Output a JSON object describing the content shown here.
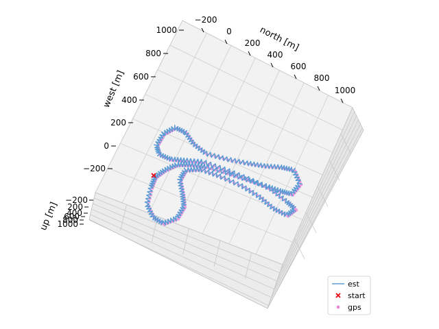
{
  "chart_data": {
    "type": "line",
    "projection": "3d",
    "axes": {
      "north": {
        "label": "north [m]",
        "ticks": [
          "−200",
          "0",
          "200",
          "400",
          "600",
          "800",
          "1000"
        ]
      },
      "west": {
        "label": "west [m]",
        "ticks": [
          "1000",
          "800",
          "600",
          "400",
          "200",
          "0",
          "−200"
        ]
      },
      "up": {
        "label": "up [m]",
        "ticks": [
          "−200",
          "200",
          "400",
          "600",
          "800",
          "1000"
        ]
      }
    },
    "grid": true,
    "legend": {
      "placement": "lower-right",
      "entries": [
        {
          "label": "est",
          "marker": "line",
          "color": "#5b9bd5"
        },
        {
          "label": "start",
          "marker": "x",
          "color": "#e8000b"
        },
        {
          "label": "gps",
          "marker": "dot",
          "color": "#e88cd6"
        }
      ]
    },
    "series": [
      {
        "name": "est",
        "color": "#5b9bd5"
      },
      {
        "name": "start",
        "color": "#e8000b"
      },
      {
        "name": "gps",
        "color": "#e88cd6"
      }
    ]
  }
}
